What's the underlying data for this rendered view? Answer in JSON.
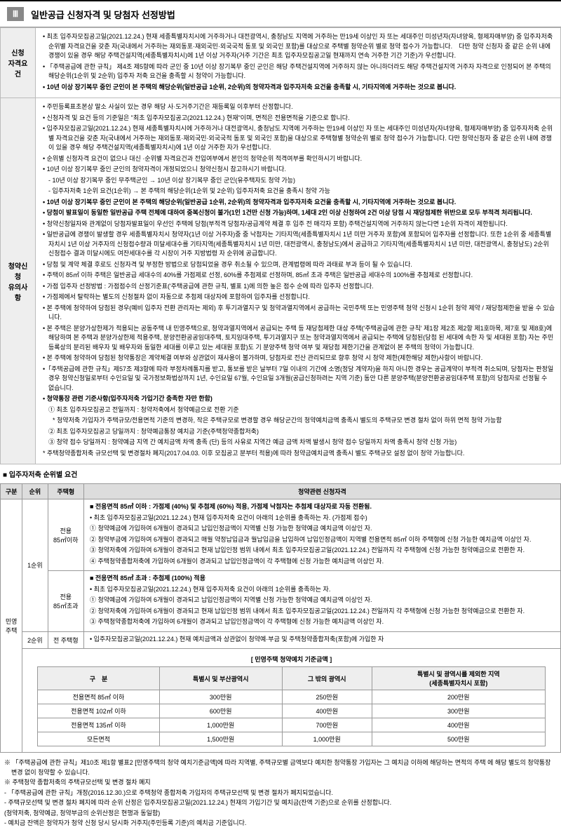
{
  "header": {
    "num": "Ⅲ",
    "title": "일반공급 신청자격 및 당첨자 선정방법"
  },
  "rows": [
    {
      "label": "신청\n자격요건",
      "items": [
        {
          "t": "• 최초 입주자모집공고일(2021.12.24.) 현재 세종특별자치시에 거주하거나 대전광역시, 충청남도 지역에 거주하는 만19세 이상인 자 또는 세대주인 미성년자(자녀양육, 형제자매부양) 중 입주자저축 순위별 자격요건을 갖춘 자(국내에서 거주하는 재외동포·재외국민·외국국적 동포 및 외국인 포함)를 대상으로 주택별 청약순위 별로 청약 접수가 가능합니다.　다만 청약 신청자 중 같은 순위 내에 경쟁이 있을 경우 해당 주택건설지역(세종특별자치시)에 1년 이상 거주자(거주 기간은 최초 입주자모집공고일 현재까지 연속 거주한 기간 기준)가 우선합니다."
        },
        {
          "t": "• 「주택공급에 관한 규칙」 제4조 제5항에 따라 군인 중 10년 이상 장기복무 중인 군인은 해당 주택건설지역에 거주하지 않는 아니하더라도 해당 주택건설지역 거주자 자격으로 인정되어 본 주택의 해당순위(1순위 및 2순위) 입주자 저축 요건을 충족할 시 청약이 가능합니다."
        },
        {
          "t": "• 10년 이상 장기복무 중인 군인이 본 주택의 해당순위(일반공급 1순위, 2순위)의 청약자격과 입주자저축 요건을 충족할 시, 기타지역에 거주하는 것으로 봅니다.",
          "b": true
        }
      ]
    },
    {
      "label": "청약신청\n유의사항",
      "items": [
        {
          "t": "• 주민등록표초본상 말소 사실이 있는 경우 해당 사·도거주기간은 재등록일 이후부터 산정합니다."
        },
        {
          "t": "• 신청자격 및 요건 등의 기준일은 \"최초 입주자모집공고(2021.12.24.) 현재\"이며, 면적은 전용면적을 기준으로 합니다."
        },
        {
          "t": "• 입주자모집공고일(2021.12.24.) 현재 세종특별자치시에 거주하거나 대전광역시, 충청남도 지역에 거주하는 만19세 이상인 자 또는 세대주인 미성년자(자녀양육, 형제자매부양) 중 입주자저축 순위별 자격요건을 갖춘 자(국내에서 거주하는 재외동포·재외국민·외국국적 동포 및 외국인 포함)을 대상으로 주택형별 청약순위 별로 청약 접수가 가능합니다. 다만 청약신청자 중 같은 순위 내에 경쟁이 있을 경우 해당 주택건설지역(세종특별자치시)에 1년 이상 거주한 자가 우선합니다."
        },
        {
          "t": "• 순위별 신청자격 요건이 없으나 대신 ·순위별 자격요건과 전입여부에서 본인의 청약순위 적격여부를 확인하시기 바랍니다."
        },
        {
          "t": "• 10년 이상 장기복무 중인 군인의 청약자격이 개정되었으니 청약신청시 참고하시기 바랍니다."
        },
        {
          "t": "- 10년 이상 장기복무 중인 무주택군인 → 10년 이상 장기복무 중인 군인(유주택자도 청약 가능)",
          "s": 1
        },
        {
          "t": "- 입주자저축 1순위 요건(1순위) → 본 주택의 해당순위(1순위 및 2순위) 입주자저축 요건을 충족시 청약 가능",
          "s": 1
        },
        {
          "t": "• 10년 이상 장기복무 중인 군인이 본 주택의 해당순위(일반공급 1순위, 2순위)의 청약자격과 입주자저축 요건을 충족할 시, 기타지역에 거주하는 것으로 봅니다.",
          "b": true
        },
        {
          "t": "• 당첨이 발표일이 동일한 일반공급 주택 전체에 대하여 중복신청이 불가(1인 1건만 신청 가능)하며, 1세대 2인 이상 신청하여 2건 이상 당첨 시 재당첨제한 위반으로 모두 부적격 처리됩니다.",
          "b": true
        },
        {
          "t": "• 청약신청일자와 관계없이 당첨자발표일이 우선인 주택에 당첨(부적격 당첨자/공급계약 체결 후 입주 전 매각자 포함) 주택건설지역에 거주하지 않는다면 1순위 자격이 제한됩니다."
        },
        {
          "t": "• 일반공급에 경쟁이 발생할 경우 세종특별자치시 청약자(1년 이상 거주자)중 중 낙첨자는 기타지역(세종특별자치시 1년 미만 거주자 포함)에 포함되어 입주자를 선정합니다. 또한 1순위 중 세종특별자치시 1년 이상 거주자의 신청접수량과 미달세대수를 기타지역(세종특별자치시 1년 미만, 대전광역시, 충청남도)에서 공급하고 기타지역(세종특별자치시 1년 미만, 대전광역시, 충청남도) 2순위 신청접수 결과 미달시에도 여잔세대수를 각 시장이 거주 지방법령 자 순위에 공급합니다."
        },
        {
          "t": "• 당첨 및 계약 체결 후로도 신청자격 및 부정한 방법으로 당첨되었을 경우 취소될 수 있으며, 관계법령에 따라 과태료 부과 등이 될 수 있습니다."
        },
        {
          "t": "• 주택이 85㎡ 이하 주택은 일반공급 세대수의 40%를 가점제로 선정, 60%를 추첨제로 선정하며, 85㎡ 초과 주택은 일반공급 세대수의 100%를 추첨제로 선정합니다."
        },
        {
          "t": "• 가점 입주자 선정방법 : 가점점수의 산정기준표('주택공급에 관한 규칙, 별표 1)에 의한 높은 점수 순에 따라 입주자 선정합니다."
        },
        {
          "t": "• 가점제에서 탈락하는 별도의 신청절차 없이 자동으로 추첨제 대상자에 포함하여 입주자를 선정합니다."
        },
        {
          "t": "• 본 주택에 청약하여 당첨된 경우(예비 입주자 전환 관리자는 제외) 후 투기과열지구 및 청약과열지역에서 공급하는 국민주택 또는 민영주택 청약 신청시 1순위 청약 제약 / 재당첨제한을 받을 수 있습니다."
        },
        {
          "t": "• 본 주택은 분양가상한제가 적용되는 공동주택 내 민영주택으로, 청약과열지역에서 공급되는 주택 등 재당첨제한 대상 주택('주택공급에 관한 규칙' 제1장 제2조 제2항 제1호마목, 제7호 및 제8호)에 해당하며 본 주택과 분양가상한제 적용주택, 분양전환공공임대주택, 토지임대주택, 투기과열지구 또는 청약과열지역에서 공급되는 주택에 당첨된(당첨 된 세대에 속한 자 및 세대원 포함) 자는 주민등록상의 분리된 배우자 및 배우자와 동일한 세대를 이루고 있는 세대원 포함)도 기 분양주택 청약 여부 및 재당첨 제한기간을 관계없이 본 주택의 청약이 가능합니다."
        },
        {
          "t": "• 본 주택에 청약하여 당첨된 청약통장은 계약체결 여부와 상관없이 재사용이 불가하며, 당첨자로 전산 관리되므로 향후 청약 시 청약 제한(제한해당 제한)사항이 바랍니다."
        },
        {
          "t": "•「주택공급에 관한 규칙」제57조 제3항에 따라 부정차례통지를 받고, 통보를 받은 날부터 7일 이내의 기간에 소명(정당 계약자)을 하지 아니한 경우는 공급계약이 부적격 취소되며, 당첨자는 판정일 경우 청약신청일로부터 수인요일 및 국가정보화법상까지 1년, 수인요일 67월, 수인요일 3개월(공급신청하려는 지역 기준) 동안 다른 분양주택(분양전환공공임대주택 포함)의 당첨자로 선정될 수 없습니다."
        },
        {
          "t": "• 청약통장 관련 기준사항(입주자저축 가입기간 충족한 자만 한함)",
          "b": true
        },
        {
          "t": "① 최초 입주자모집공고 전일까지 : 청약저축에서 청약예금으로 전환 기준",
          "s": 1
        },
        {
          "t": "* 청약저축 가입자가 주택규모/전용면적 기준의 변경하, 작은 주택규모로 변경할 경우 해당군간의 청약예치금액 충족시 별도의 주택규모 변경 절차 없이 하위 면적 청약 가능함",
          "s": 2
        },
        {
          "t": "② 최초 입주자모집공고 당일까지 : 청약예금통장 예치금 기준(주택청약종합저축)",
          "s": 1
        },
        {
          "t": "③ 청약 접수 당일까지 : 청약예금 지역 간 예치금액 차액 충족 (단) 등의 사유로 지역간 예금 금액 차액 발생시 청약 접수 당일까지 차액 충족시 청약 신청 가능)",
          "s": 1
        },
        {
          "t": "* 주택청약종합저축 규모선택 및 변경절차 폐지(2017.04.03. 이후 모집공고 분부터 적용)에 따라 청약금예치금액 충족시 별도 주택규모 설정 없이 청약 가능합니다."
        }
      ]
    }
  ],
  "subHeading": "■ 입주자저축 순위별 요건",
  "rankTable": {
    "headers": [
      "구분",
      "순위",
      "주택형",
      "청약관련 신청자격"
    ],
    "sideLabel": "민영\n주택",
    "rows": [
      {
        "rank": "1순위",
        "type": "전용\n85㎡이하",
        "items": [
          {
            "t": "■ 전용면적 85㎡ 이하 : 가점제 (40%) 및 추첨제 (60%) 적용, 가점제 낙첨자는 추첨제 대상자로 자동 전환됨.",
            "b": true
          },
          {
            "t": "• 최초 입주자모집공고일(2021.12.24.) 현재 입주자저축 요건이 아래의 1순위를 충족하는 자. (가점제 접수)"
          },
          {
            "t": "① 청약예금에 가입하여 6개월이 경과되고 납입인정금액이 지역별 신청 가능한 청약예금 예치금액 이상인 자."
          },
          {
            "t": "② 청약부금에 가입하여 6개월이 경과되고 매월 약정납입금과 월납입금을 납입하여 납입인정금액이 지역별 전용면적 85㎡ 이하 주택형에 신청 가능한 예치금액 이상인 자."
          },
          {
            "t": "③ 청약저축에 가입하여 6개월이 경과되고 현재 납입인정 범위 내에서 최초 입주자모집공고일(2021.12.24.) 전일까지 각 주택형에 신청 가능한 청약예금으로 전환한 자."
          },
          {
            "t": "④ 주택청약종합저축에 가입하여 6개월이 경과되고 납입인정금액이 각 주택형에 신청 가능한 예치금액 이상인 자."
          }
        ]
      },
      {
        "rank": "",
        "type": "전용\n85㎡초과",
        "items": [
          {
            "t": "■ 전용면적 85㎡ 초과 : 추첨제 (100%) 적용",
            "b": true
          },
          {
            "t": "• 최초 입주자모집공고일(2021.12.24.) 현재 입주자저축 요건이 아래의 1순위를 충족하는 자."
          },
          {
            "t": "① 청약예금에 가입하여 6개월이 경과되고 납입인정금액이 지역별 신청 가능한 청약예금 예치금액 이상인 자."
          },
          {
            "t": "② 청약저축에 가입하여 6개월이 경과되고 현재 납입인정 범위 내에서 최초 입주자모집공고일(2021.12.24.) 전일까지 각 주택형에 신청 가능한 청약예금으로 전환한 자."
          },
          {
            "t": "③ 주택청약종합저축에 가입하여 6개월이 경과되고 납입인정금액이 각 주택형에 신청 가능한 예치금액 이상인 자."
          }
        ]
      },
      {
        "rank": "2순위",
        "type": "전 주택형",
        "items": [
          {
            "t": "• 입주자모집공고일(2021.12.24.) 현재 예치금액과 상관없이 청약예·부금 및 주택청약종합저축(포함)에 가입한 자"
          }
        ]
      }
    ]
  },
  "amountTable": {
    "caption": "[ 민영주택 청약예치 기준금액 ]",
    "headers": [
      "구　분",
      "특별시 및 부산광역시",
      "그 밖의 광역시",
      "특별시 및 광역시를 제외한 지역\n(세종특별자치시 포함)"
    ],
    "rows": [
      [
        "전용면적 85㎡ 이하",
        "300만원",
        "250만원",
        "200만원"
      ],
      [
        "전용면적 102㎡ 이하",
        "600만원",
        "400만원",
        "300만원"
      ],
      [
        "전용면적 135㎡ 이하",
        "1,000만원",
        "700만원",
        "400만원"
      ],
      [
        "모든면적",
        "1,500만원",
        "1,000만원",
        "500만원"
      ]
    ]
  },
  "notes": [
    "※ 「주택공급에 관한 규칙」제10조 제1항 별표2 [민영주택의 청약 예치기준금액]에 따라 지역별, 주택규모별 금액보다 예치한 청약통장 가입자는 그 예치금 이하에 해당하는 면적의 주택 에 해당 별도의 청약통장 변경 없이 청약할 수 있습니다.",
    "※ 주택청약 종합저축의 주택규모선택 및 변경 절차 폐지",
    "- 「주택공급에 관한 규칙」개정(2016.12.30.)으로 주택청약 종합저축 가입자의 주택규모선택 및 변경 절차가 폐지되었습니다.",
    "- 주택규모선택 및 변경 절차 폐지에 따라 순위 산정은 입주자모집공고일(2021.12.24.) 현재의 가입기간 및 예치금(잔액 기준)으로 순위를 산정합니다.",
    "(청약저축, 청약예금, 청약부금의 순위산정은 현행과 동일함)",
    "- 예치금 잔액은 청약자가 청약 신청 당시 당시화 거주지(주민등록 기준)의 예치금 기준입니다."
  ]
}
